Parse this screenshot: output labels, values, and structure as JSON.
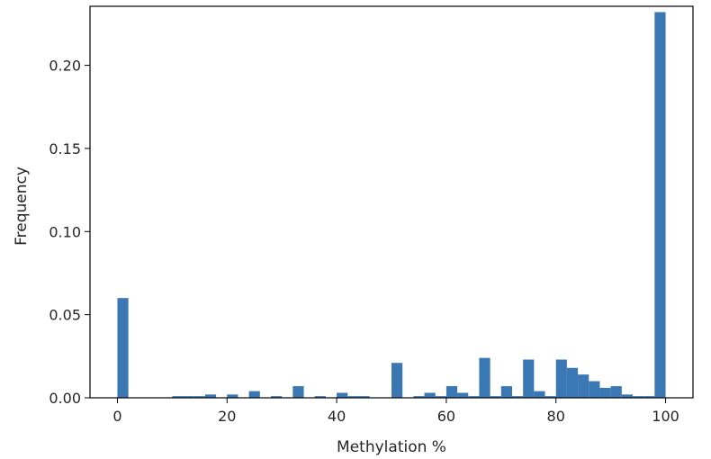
{
  "chart_data": {
    "type": "bar",
    "title": "",
    "xlabel": "Methylation %",
    "ylabel": "Frequency",
    "xlim": [
      -5,
      105
    ],
    "ylim": [
      0,
      0.2355
    ],
    "bin_width": 2,
    "bar_color": "#3a78b4",
    "grid": false,
    "x_ticks": [
      0,
      20,
      40,
      60,
      80,
      100
    ],
    "y_ticks": [
      0.0,
      0.05,
      0.1,
      0.15,
      0.2
    ],
    "x_tick_labels": [
      "0",
      "20",
      "40",
      "60",
      "80",
      "100"
    ],
    "y_tick_labels": [
      "0.00",
      "0.05",
      "0.10",
      "0.15",
      "0.20"
    ],
    "bins": [
      {
        "x0": 0,
        "value": 0.06
      },
      {
        "x0": 10,
        "value": 0.001
      },
      {
        "x0": 12,
        "value": 0.001
      },
      {
        "x0": 14,
        "value": 0.001
      },
      {
        "x0": 16,
        "value": 0.002
      },
      {
        "x0": 20,
        "value": 0.002
      },
      {
        "x0": 24,
        "value": 0.004
      },
      {
        "x0": 28,
        "value": 0.001
      },
      {
        "x0": 32,
        "value": 0.007
      },
      {
        "x0": 36,
        "value": 0.001
      },
      {
        "x0": 40,
        "value": 0.003
      },
      {
        "x0": 42,
        "value": 0.001
      },
      {
        "x0": 44,
        "value": 0.001
      },
      {
        "x0": 50,
        "value": 0.021
      },
      {
        "x0": 54,
        "value": 0.001
      },
      {
        "x0": 56,
        "value": 0.003
      },
      {
        "x0": 58,
        "value": 0.001
      },
      {
        "x0": 60,
        "value": 0.007
      },
      {
        "x0": 62,
        "value": 0.003
      },
      {
        "x0": 64,
        "value": 0.001
      },
      {
        "x0": 66,
        "value": 0.024
      },
      {
        "x0": 68,
        "value": 0.001
      },
      {
        "x0": 70,
        "value": 0.007
      },
      {
        "x0": 72,
        "value": 0.001
      },
      {
        "x0": 74,
        "value": 0.023
      },
      {
        "x0": 76,
        "value": 0.004
      },
      {
        "x0": 78,
        "value": 0.001
      },
      {
        "x0": 80,
        "value": 0.023
      },
      {
        "x0": 82,
        "value": 0.018
      },
      {
        "x0": 84,
        "value": 0.014
      },
      {
        "x0": 86,
        "value": 0.01
      },
      {
        "x0": 88,
        "value": 0.006
      },
      {
        "x0": 90,
        "value": 0.007
      },
      {
        "x0": 92,
        "value": 0.002
      },
      {
        "x0": 94,
        "value": 0.001
      },
      {
        "x0": 96,
        "value": 0.001
      },
      {
        "x0": 98,
        "value": 0.232
      }
    ]
  }
}
